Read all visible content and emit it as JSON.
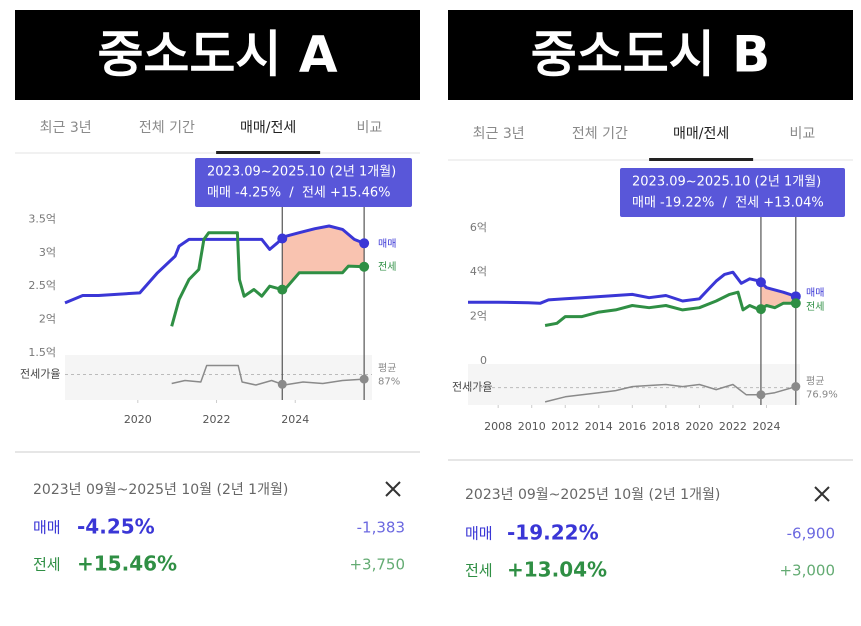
{
  "panels": [
    {
      "banner": "중소도시 A",
      "tabs": [
        "최근 3년",
        "전체 기간",
        "매매/전세",
        "비교"
      ],
      "active_tab": 2,
      "tooltip": {
        "period": "2023.09~2025.10 (2년 1개월)",
        "change": "매매 -4.25%  /  전세 +15.46%"
      },
      "summary": {
        "period": "2023년 09월~2025년 10월 (2년 1개월)",
        "rows": [
          {
            "label": "매매",
            "change": "-4.25%",
            "amount": "-1,383"
          },
          {
            "label": "전세",
            "change": "+15.46%",
            "amount": "+3,750"
          }
        ]
      }
    },
    {
      "banner": "중소도시 B",
      "tabs": [
        "최근 3년",
        "전체 기간",
        "매매/전세",
        "비교"
      ],
      "active_tab": 2,
      "tooltip": {
        "period": "2023.09~2025.10 (2년 1개월)",
        "change": "매매 -19.22%  /  전세 +13.04%"
      },
      "summary": {
        "period": "2023년 09월~2025년 10월 (2년 1개월)",
        "rows": [
          {
            "label": "매매",
            "change": "-19.22%",
            "amount": "-6,900"
          },
          {
            "label": "전세",
            "change": "+13.04%",
            "amount": "+3,000"
          }
        ]
      }
    }
  ],
  "chart_data": [
    {
      "type": "line",
      "xlim": [
        2018.15,
        2025.95
      ],
      "xticks": [
        2020,
        2022,
        2024
      ],
      "ylim": [
        1.5,
        3.7
      ],
      "yticks": [
        {
          "value": 3.5,
          "label": "3.5억"
        },
        {
          "value": 3,
          "label": "3억"
        },
        {
          "value": 2.5,
          "label": "2.5억"
        },
        {
          "value": 2,
          "label": "2억"
        },
        {
          "value": 1.5,
          "label": "1.5억"
        }
      ],
      "series": [
        {
          "name": "매매",
          "color": "#3a36d6",
          "x": [
            2018.15,
            2018.6,
            2019.0,
            2019.5,
            2020.05,
            2020.5,
            2020.95,
            2021.05,
            2021.3,
            2021.8,
            2022.4,
            2023.15,
            2023.35,
            2023.55,
            2023.72,
            2024.1,
            2024.5,
            2024.86,
            2025.2,
            2025.5,
            2025.8
          ],
          "values": [
            2.25,
            2.36,
            2.36,
            2.38,
            2.4,
            2.7,
            2.95,
            3.1,
            3.2,
            3.2,
            3.2,
            3.2,
            3.05,
            3.15,
            3.24,
            3.3,
            3.36,
            3.4,
            3.35,
            3.2,
            3.13
          ]
        },
        {
          "name": "전세",
          "color": "#2f8f44",
          "x": [
            2020.86,
            2021.05,
            2021.3,
            2021.55,
            2021.68,
            2021.8,
            2022.2,
            2022.53,
            2022.58,
            2022.7,
            2022.95,
            2023.15,
            2023.35,
            2023.72,
            2024.1,
            2024.6,
            2025.2,
            2025.35,
            2025.8
          ],
          "values": [
            1.9,
            2.3,
            2.6,
            2.75,
            3.2,
            3.3,
            3.3,
            3.3,
            2.6,
            2.35,
            2.45,
            2.35,
            2.5,
            2.44,
            2.7,
            2.7,
            2.7,
            2.8,
            2.79
          ]
        }
      ],
      "highlight": [
        2023.67,
        2025.75
      ],
      "highlight_fill": "#f8b8a2",
      "ratio": {
        "name": "전세가율",
        "color": "#8a8a8a",
        "x": [
          2020.86,
          2021.2,
          2021.6,
          2021.75,
          2022.2,
          2022.55,
          2022.65,
          2023.0,
          2023.4,
          2023.72,
          2024.2,
          2024.7,
          2025.2,
          2025.8
        ],
        "values": [
          81,
          83,
          82,
          93,
          93,
          93,
          82,
          80,
          83,
          80,
          82,
          81,
          83,
          84
        ],
        "ylim": [
          70,
          100
        ],
        "average": 87,
        "average_name": "평균",
        "average_label": "87%"
      }
    },
    {
      "type": "line",
      "xlim": [
        2006.2,
        2026.0
      ],
      "xticks": [
        2008,
        2010,
        2012,
        2014,
        2016,
        2018,
        2020,
        2022,
        2024
      ],
      "ylim": [
        0,
        6.8
      ],
      "yticks": [
        {
          "value": 6,
          "label": "6억"
        },
        {
          "value": 4,
          "label": "4억"
        },
        {
          "value": 2,
          "label": "2억"
        },
        0
      ],
      "series": [
        {
          "name": "매매",
          "color": "#3a36d6",
          "x": [
            2006.2,
            2008.0,
            2009.8,
            2010.5,
            2011.0,
            2012.0,
            2013.0,
            2014.0,
            2015.0,
            2016.0,
            2017.0,
            2018.0,
            2019.0,
            2020.0,
            2020.5,
            2021.0,
            2021.5,
            2022.0,
            2022.5,
            2023.0,
            2023.6,
            2024.0,
            2024.5,
            2025.0,
            2025.8
          ],
          "values": [
            2.65,
            2.65,
            2.62,
            2.6,
            2.75,
            2.8,
            2.85,
            2.9,
            2.95,
            3.0,
            2.85,
            2.95,
            2.7,
            2.8,
            3.2,
            3.6,
            3.9,
            4.0,
            3.5,
            3.7,
            3.6,
            3.3,
            3.2,
            3.1,
            2.9
          ]
        },
        {
          "name": "전세",
          "color": "#2f8f44",
          "x": [
            2010.8,
            2011.5,
            2012.0,
            2013.0,
            2014.0,
            2015.0,
            2016.0,
            2017.0,
            2018.0,
            2019.0,
            2020.0,
            2021.0,
            2021.8,
            2022.3,
            2022.6,
            2023.0,
            2023.6,
            2024.0,
            2024.5,
            2025.0,
            2025.8
          ],
          "values": [
            1.6,
            1.7,
            2.0,
            2.0,
            2.2,
            2.3,
            2.5,
            2.4,
            2.5,
            2.3,
            2.4,
            2.7,
            3.0,
            3.1,
            2.3,
            2.5,
            2.3,
            2.5,
            2.4,
            2.6,
            2.6
          ]
        }
      ],
      "highlight": [
        2023.67,
        2025.75
      ],
      "highlight_fill": "#f8b8a2",
      "ratio": {
        "name": "전세가율",
        "color": "#8a8a8a",
        "x": [
          2010.8,
          2012.0,
          2013.0,
          2014.0,
          2015.0,
          2016.0,
          2017.0,
          2018.0,
          2019.0,
          2020.0,
          2021.0,
          2022.0,
          2022.8,
          2023.67,
          2024.5,
          2025.75
        ],
        "values": [
          63,
          68,
          70,
          72,
          74,
          78,
          79,
          80,
          78,
          80,
          75,
          80,
          70,
          70,
          72,
          78
        ],
        "ylim": [
          60,
          100
        ],
        "average": 76.9,
        "average_name": "평균",
        "average_label": "76.9%"
      }
    }
  ]
}
